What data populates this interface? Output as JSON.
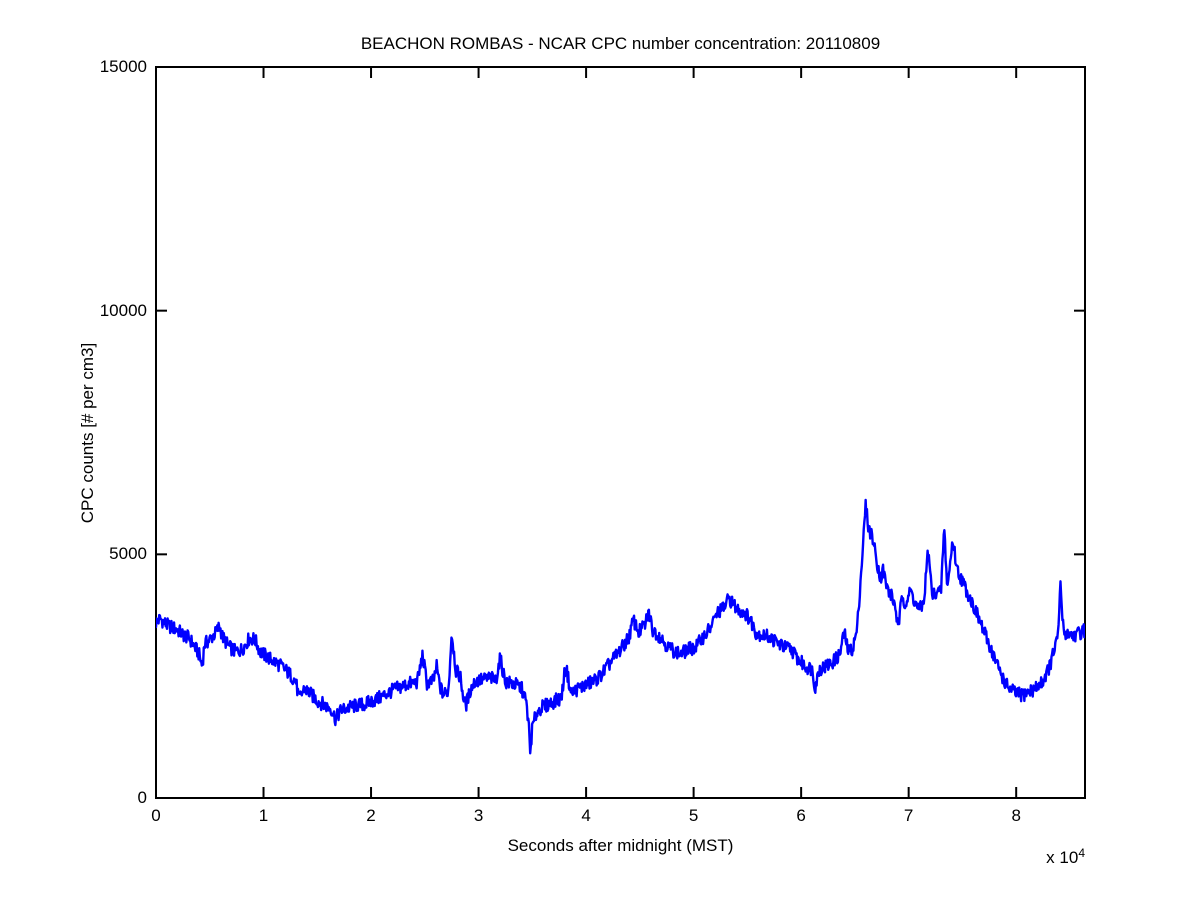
{
  "figure": {
    "background": "#ffffff",
    "frame_color": "#000000"
  },
  "chart_data": {
    "type": "line",
    "title": "BEACHON ROMBAS - NCAR CPC number concentration: 20110809",
    "xlabel": "Seconds after midnight (MST)",
    "ylabel": "CPC counts [# per cm3]",
    "grid": false,
    "legend": null,
    "x_axis": {
      "lim": [
        0,
        86400
      ],
      "ticks": [
        0,
        10000,
        20000,
        30000,
        40000,
        50000,
        60000,
        70000,
        80000
      ],
      "tick_labels": [
        "0",
        "1",
        "2",
        "3",
        "4",
        "5",
        "6",
        "7",
        "8"
      ],
      "scale_base": "x 10",
      "scale_exp": "4"
    },
    "y_axis": {
      "lim": [
        0,
        15000
      ],
      "ticks": [
        0,
        5000,
        10000,
        15000
      ],
      "tick_labels": [
        "0",
        "5000",
        "10000",
        "15000"
      ]
    },
    "noise": {
      "amplitude": 145,
      "step_seconds": 60
    },
    "series": [
      {
        "name": "NCAR CPC number concentration",
        "color": "#0000FF",
        "line_width": 2.4,
        "points": [
          [
            0,
            3600
          ],
          [
            400,
            3680
          ],
          [
            1000,
            3550
          ],
          [
            1500,
            3500
          ],
          [
            2000,
            3450
          ],
          [
            2500,
            3350
          ],
          [
            3100,
            3280
          ],
          [
            3600,
            3100
          ],
          [
            4000,
            2950
          ],
          [
            4300,
            2700
          ],
          [
            4500,
            3150
          ],
          [
            5000,
            3250
          ],
          [
            5600,
            3400
          ],
          [
            5900,
            3530
          ],
          [
            6200,
            3300
          ],
          [
            6800,
            3100
          ],
          [
            7400,
            3000
          ],
          [
            8000,
            3050
          ],
          [
            8700,
            3280
          ],
          [
            9200,
            3250
          ],
          [
            9700,
            3000
          ],
          [
            10300,
            2900
          ],
          [
            11000,
            2800
          ],
          [
            11700,
            2700
          ],
          [
            12400,
            2550
          ],
          [
            13000,
            2400
          ],
          [
            13300,
            2020
          ],
          [
            13800,
            2250
          ],
          [
            14300,
            2150
          ],
          [
            15000,
            2000
          ],
          [
            15700,
            1900
          ],
          [
            16300,
            1830
          ],
          [
            16700,
            1620
          ],
          [
            17200,
            1800
          ],
          [
            18000,
            1860
          ],
          [
            18700,
            1900
          ],
          [
            19400,
            1920
          ],
          [
            20000,
            1980
          ],
          [
            20400,
            2010
          ],
          [
            21300,
            2120
          ],
          [
            22200,
            2230
          ],
          [
            23000,
            2300
          ],
          [
            23600,
            2350
          ],
          [
            24300,
            2380
          ],
          [
            24800,
            2930
          ],
          [
            25200,
            2350
          ],
          [
            25800,
            2400
          ],
          [
            26100,
            2690
          ],
          [
            26400,
            2300
          ],
          [
            26700,
            2120
          ],
          [
            27200,
            2200
          ],
          [
            27500,
            3410
          ],
          [
            27900,
            2600
          ],
          [
            28300,
            2500
          ],
          [
            28600,
            2050
          ],
          [
            28800,
            1890
          ],
          [
            29300,
            2250
          ],
          [
            29700,
            2400
          ],
          [
            30400,
            2430
          ],
          [
            31100,
            2470
          ],
          [
            31600,
            2400
          ],
          [
            32000,
            2870
          ],
          [
            32500,
            2380
          ],
          [
            33100,
            2350
          ],
          [
            33700,
            2300
          ],
          [
            34000,
            2250
          ],
          [
            34400,
            2000
          ],
          [
            34650,
            1550
          ],
          [
            34800,
            920
          ],
          [
            35000,
            1450
          ],
          [
            35400,
            1750
          ],
          [
            35800,
            1850
          ],
          [
            36300,
            1900
          ],
          [
            37000,
            1980
          ],
          [
            37700,
            2050
          ],
          [
            38100,
            2730
          ],
          [
            38600,
            2150
          ],
          [
            39300,
            2250
          ],
          [
            40000,
            2320
          ],
          [
            40700,
            2400
          ],
          [
            41300,
            2500
          ],
          [
            42000,
            2700
          ],
          [
            42700,
            2900
          ],
          [
            43400,
            3100
          ],
          [
            44000,
            3310
          ],
          [
            44400,
            3650
          ],
          [
            44900,
            3400
          ],
          [
            45500,
            3560
          ],
          [
            45800,
            3820
          ],
          [
            46200,
            3450
          ],
          [
            46900,
            3310
          ],
          [
            47600,
            3100
          ],
          [
            48300,
            3000
          ],
          [
            48800,
            2950
          ],
          [
            49500,
            3050
          ],
          [
            50200,
            3100
          ],
          [
            50900,
            3310
          ],
          [
            51600,
            3500
          ],
          [
            52200,
            3800
          ],
          [
            52800,
            3900
          ],
          [
            53300,
            4100
          ],
          [
            54000,
            3880
          ],
          [
            54700,
            3820
          ],
          [
            55300,
            3650
          ],
          [
            55800,
            3400
          ],
          [
            56400,
            3340
          ],
          [
            57000,
            3310
          ],
          [
            57700,
            3200
          ],
          [
            58400,
            3100
          ],
          [
            59100,
            3050
          ],
          [
            59700,
            2850
          ],
          [
            60400,
            2700
          ],
          [
            61000,
            2650
          ],
          [
            61300,
            2280
          ],
          [
            61700,
            2650
          ],
          [
            62300,
            2700
          ],
          [
            63000,
            2800
          ],
          [
            63600,
            2950
          ],
          [
            64000,
            3400
          ],
          [
            64400,
            3000
          ],
          [
            64800,
            3070
          ],
          [
            65200,
            3450
          ],
          [
            65600,
            4700
          ],
          [
            66000,
            6000
          ],
          [
            66300,
            5500
          ],
          [
            66600,
            5400
          ],
          [
            67000,
            4900
          ],
          [
            67400,
            4500
          ],
          [
            67600,
            4700
          ],
          [
            68000,
            4300
          ],
          [
            68400,
            4150
          ],
          [
            68800,
            3900
          ],
          [
            69000,
            3450
          ],
          [
            69400,
            4150
          ],
          [
            69700,
            4000
          ],
          [
            70200,
            4250
          ],
          [
            70600,
            4000
          ],
          [
            71000,
            3860
          ],
          [
            71400,
            4000
          ],
          [
            71800,
            5090
          ],
          [
            72200,
            4150
          ],
          [
            72600,
            4250
          ],
          [
            73000,
            4200
          ],
          [
            73300,
            5550
          ],
          [
            73600,
            4300
          ],
          [
            74100,
            5300
          ],
          [
            74500,
            4700
          ],
          [
            74900,
            4500
          ],
          [
            75300,
            4300
          ],
          [
            75800,
            4060
          ],
          [
            76300,
            3800
          ],
          [
            76700,
            3580
          ],
          [
            77200,
            3300
          ],
          [
            77700,
            3040
          ],
          [
            78100,
            2800
          ],
          [
            78600,
            2550
          ],
          [
            79000,
            2350
          ],
          [
            79500,
            2220
          ],
          [
            80000,
            2150
          ],
          [
            80500,
            2100
          ],
          [
            80900,
            2150
          ],
          [
            81400,
            2200
          ],
          [
            81800,
            2250
          ],
          [
            82300,
            2350
          ],
          [
            82700,
            2500
          ],
          [
            83200,
            2750
          ],
          [
            83600,
            3100
          ],
          [
            83900,
            3300
          ],
          [
            84100,
            4420
          ],
          [
            84400,
            3400
          ],
          [
            84800,
            3380
          ],
          [
            85200,
            3350
          ],
          [
            85600,
            3350
          ],
          [
            86000,
            3400
          ],
          [
            86400,
            3450
          ]
        ]
      }
    ]
  }
}
